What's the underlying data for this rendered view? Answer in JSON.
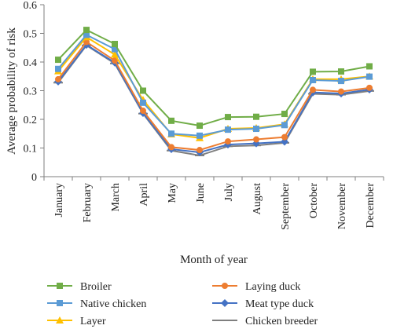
{
  "chart_data": {
    "type": "line",
    "xlabel": "Month of year",
    "ylabel": "Average probability of risk",
    "ylim": [
      0,
      0.6
    ],
    "yticks": [
      "0",
      "0.1",
      "0.2",
      "0.3",
      "0.4",
      "0.5",
      "0.6"
    ],
    "categories": [
      "January",
      "February",
      "March",
      "April",
      "May",
      "June",
      "July",
      "August",
      "September",
      "October",
      "November",
      "December"
    ],
    "grid": false,
    "legend_position": "bottom",
    "series": [
      {
        "name": "Broiler",
        "color": "#70ad47",
        "marker": "square",
        "values": [
          0.408,
          0.512,
          0.463,
          0.3,
          0.195,
          0.178,
          0.208,
          0.209,
          0.219,
          0.366,
          0.367,
          0.385
        ]
      },
      {
        "name": "Native chicken",
        "color": "#5b9bd5",
        "marker": "square",
        "values": [
          0.376,
          0.495,
          0.445,
          0.258,
          0.15,
          0.143,
          0.164,
          0.167,
          0.18,
          0.337,
          0.334,
          0.349
        ]
      },
      {
        "name": "Layer",
        "color": "#ffc000",
        "marker": "triangle",
        "values": [
          0.368,
          0.487,
          0.426,
          0.268,
          0.148,
          0.135,
          0.167,
          0.17,
          0.183,
          0.34,
          0.34,
          0.35
        ]
      },
      {
        "name": "Laying duck",
        "color": "#ed7d31",
        "marker": "circle",
        "values": [
          0.34,
          0.47,
          0.405,
          0.23,
          0.103,
          0.093,
          0.123,
          0.13,
          0.138,
          0.303,
          0.297,
          0.31
        ]
      },
      {
        "name": "Meat type duck",
        "color": "#4472c4",
        "marker": "diamond",
        "values": [
          0.332,
          0.46,
          0.398,
          0.222,
          0.096,
          0.085,
          0.112,
          0.116,
          0.122,
          0.294,
          0.29,
          0.304
        ]
      },
      {
        "name": "Chicken breeder",
        "color": "#7f7f7f",
        "marker": "dash",
        "values": [
          0.328,
          0.458,
          0.395,
          0.22,
          0.091,
          0.074,
          0.106,
          0.109,
          0.118,
          0.289,
          0.286,
          0.299
        ]
      }
    ]
  }
}
